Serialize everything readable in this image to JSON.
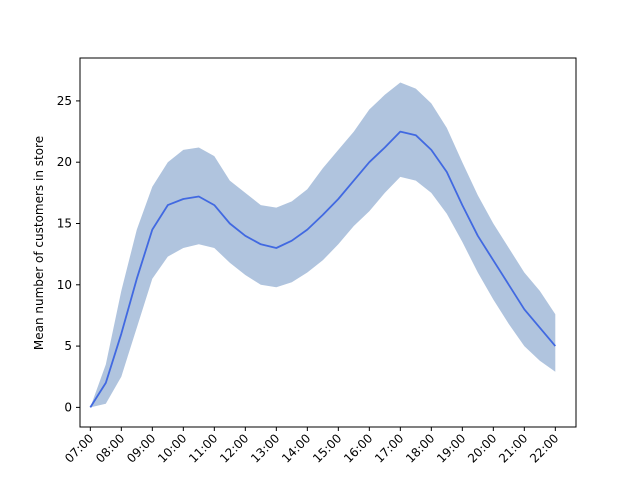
{
  "chart_data": {
    "type": "line",
    "title": "",
    "xlabel": "",
    "ylabel": "Mean number of customers in store",
    "x": [
      "07:00",
      "07:30",
      "08:00",
      "08:30",
      "09:00",
      "09:30",
      "10:00",
      "10:30",
      "11:00",
      "11:30",
      "12:00",
      "12:30",
      "13:00",
      "13:30",
      "14:00",
      "14:30",
      "15:00",
      "15:30",
      "16:00",
      "16:30",
      "17:00",
      "17:30",
      "18:00",
      "18:30",
      "19:00",
      "19:30",
      "20:00",
      "20:30",
      "21:00",
      "21:30",
      "22:00"
    ],
    "series": [
      {
        "values": [
          0.0,
          2.0,
          6.0,
          10.5,
          14.5,
          16.5,
          17.0,
          17.2,
          16.5,
          15.0,
          14.0,
          13.3,
          13.0,
          13.6,
          14.5,
          15.7,
          17.0,
          18.5,
          20.0,
          21.2,
          22.5,
          22.2,
          21.0,
          19.2,
          16.5,
          14.0,
          12.0,
          10.0,
          8.0,
          6.5,
          5.0
        ],
        "lower": [
          0.0,
          0.3,
          2.5,
          6.5,
          10.5,
          12.3,
          13.0,
          13.3,
          13.0,
          11.8,
          10.8,
          10.0,
          9.8,
          10.2,
          11.0,
          12.0,
          13.3,
          14.8,
          16.0,
          17.5,
          18.8,
          18.5,
          17.5,
          15.8,
          13.5,
          11.0,
          8.8,
          6.8,
          5.0,
          3.8,
          2.9
        ],
        "upper": [
          0.0,
          3.5,
          9.5,
          14.5,
          18.0,
          20.0,
          21.0,
          21.2,
          20.5,
          18.5,
          17.5,
          16.5,
          16.3,
          16.8,
          17.8,
          19.5,
          21.0,
          22.5,
          24.3,
          25.5,
          26.5,
          26.0,
          24.8,
          22.8,
          20.0,
          17.3,
          15.0,
          13.0,
          11.0,
          9.5,
          7.6
        ]
      }
    ],
    "xticks": [
      "07:00",
      "08:00",
      "09:00",
      "10:00",
      "11:00",
      "12:00",
      "13:00",
      "14:00",
      "15:00",
      "16:00",
      "17:00",
      "18:00",
      "19:00",
      "20:00",
      "21:00",
      "22:00"
    ],
    "yticks": [
      0,
      5,
      10,
      15,
      20,
      25
    ],
    "xlim": [
      "06:40",
      "22:40"
    ],
    "ylim": [
      -1.6,
      28.5
    ],
    "grid": false,
    "colors": {
      "line": "#4169e1",
      "band": "#b0c4de"
    }
  }
}
